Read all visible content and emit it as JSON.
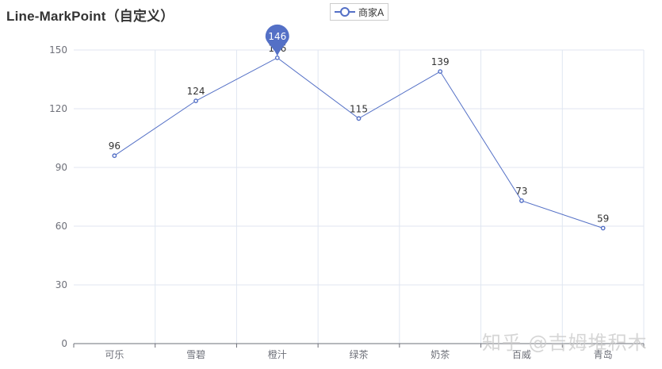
{
  "title": "Line-MarkPoint（自定义）",
  "legend": {
    "label": "商家A",
    "color": "#5470c6"
  },
  "watermark": "知乎 @吉姆堆积木",
  "colors": {
    "series": "#5470c6",
    "grid": "#e0e6f1",
    "axis": "#6e7079",
    "label": "#333333",
    "tick_label": "#6e7079"
  },
  "chart_data": {
    "type": "line",
    "title": "Line-MarkPoint（自定义）",
    "categories": [
      "可乐",
      "雪碧",
      "橙汁",
      "绿茶",
      "奶茶",
      "百威",
      "青岛"
    ],
    "series": [
      {
        "name": "商家A",
        "values": [
          96,
          124,
          146,
          115,
          139,
          73,
          59
        ]
      }
    ],
    "xlabel": "",
    "ylabel": "",
    "ylim": [
      0,
      150
    ],
    "yticks": [
      0,
      30,
      60,
      90,
      120,
      150
    ],
    "grid": true,
    "legend_position": "top-center",
    "data_labels": true,
    "mark_point": {
      "category": "橙汁",
      "value": 146,
      "label": "146",
      "shape": "pin"
    }
  }
}
